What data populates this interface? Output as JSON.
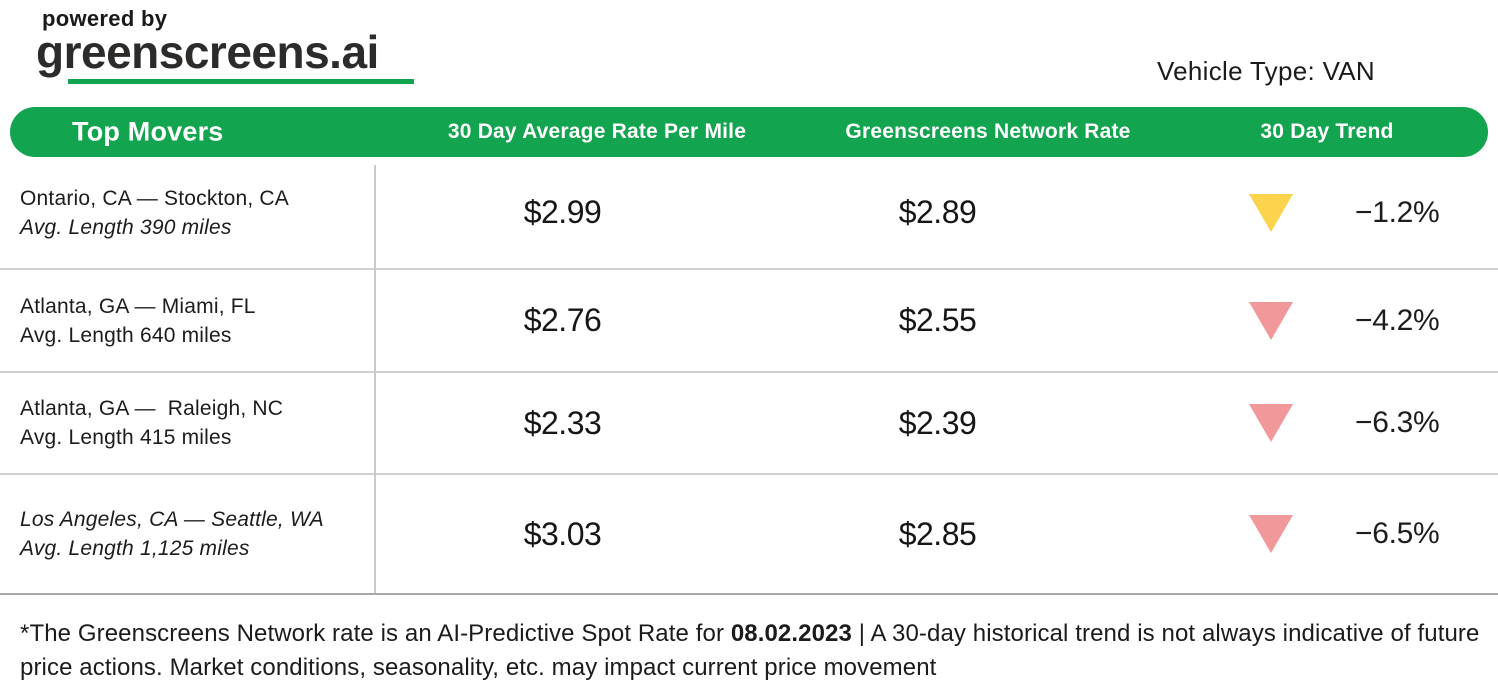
{
  "logo": {
    "powered_by": "powered by",
    "brand": "greenscreens.ai"
  },
  "vehicle_type": {
    "label": "Vehicle Type:",
    "value": "VAN"
  },
  "table": {
    "headers": [
      "Top Movers",
      "30 Day Average Rate Per Mile",
      "Greenscreens Network Rate",
      "30 Day Trend"
    ],
    "rows": [
      {
        "lane": "Ontario, CA — Stockton, CA",
        "lane_italic": false,
        "avg_length": "Avg. Length 390 miles",
        "avg_length_italic": true,
        "avg_rate": "$2.99",
        "network_rate": "$2.89",
        "trend_direction": "down",
        "trend_color": "yellow",
        "trend_pct": "−1.2%"
      },
      {
        "lane": "Atlanta, GA — Miami, FL",
        "lane_italic": false,
        "avg_length": "Avg. Length 640 miles",
        "avg_length_italic": false,
        "avg_rate": "$2.76",
        "network_rate": "$2.55",
        "trend_direction": "down",
        "trend_color": "pink",
        "trend_pct": "−4.2%"
      },
      {
        "lane": "Atlanta, GA —  Raleigh, NC",
        "lane_italic": false,
        "avg_length": "Avg. Length 415 miles",
        "avg_length_italic": false,
        "avg_rate": "$2.33",
        "network_rate": "$2.39",
        "trend_direction": "down",
        "trend_color": "pink",
        "trend_pct": "−6.3%"
      },
      {
        "lane": "Los Angeles, CA — Seattle, WA",
        "lane_italic": true,
        "avg_length": "Avg. Length 1,125 miles",
        "avg_length_italic": true,
        "avg_rate": "$3.03",
        "network_rate": "$2.85",
        "trend_direction": "down",
        "trend_color": "pink",
        "trend_pct": "−6.5%"
      }
    ]
  },
  "footnote": {
    "prefix": "*The Greenscreens Network rate is an AI-Predictive Spot Rate for ",
    "date": "08.02.2023",
    "suffix": " | A 30-day historical trend is not always indicative of future price actions. Market conditions, seasonality, etc. may impact current price movement"
  },
  "colors": {
    "brand_green": "#12A44E",
    "trend_yellow": "#FBD34D",
    "trend_pink": "#F1989B",
    "divider_gray": "#d0d0d0",
    "table_bottom_border": "#a8a8a8"
  }
}
